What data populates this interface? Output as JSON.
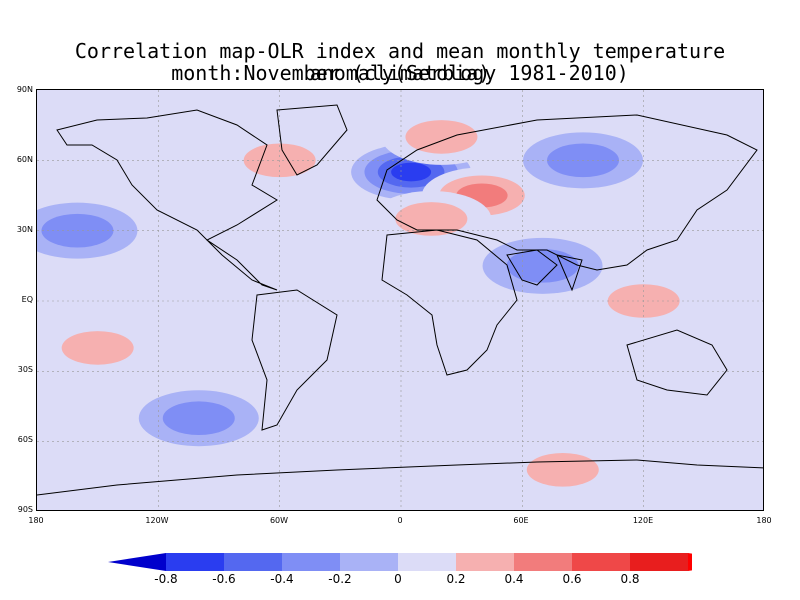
{
  "title_line1": "Correlation map-OLR index and mean monthly temperature anomaly(Serbia)",
  "title_line2": "month:November (climatology 1981-2010)",
  "y_axis_labels": [
    "90N",
    "60N",
    "30N",
    "EQ",
    "30S",
    "60S",
    "90S"
  ],
  "x_axis_labels": [
    "180",
    "120W",
    "60W",
    "0",
    "60E",
    "120E",
    "180"
  ],
  "colorbar": {
    "labels": [
      "-0.8",
      "-0.6",
      "-0.4",
      "-0.2",
      "0",
      "0.2",
      "0.4",
      "0.6",
      "0.8"
    ],
    "colors": [
      "#0000cc",
      "#2a3df0",
      "#5468f0",
      "#7f8ef5",
      "#a9b2f6",
      "#dcdcf7",
      "#f6b0b0",
      "#f27c7c",
      "#ef4848",
      "#e81e1e",
      "#ff0000"
    ]
  },
  "chart_data": {
    "type": "heatmap",
    "title": "Correlation map-OLR index and mean monthly temperature anomaly(Serbia)",
    "subtitle": "month:November (climatology 1981-2010)",
    "xlim": [
      -180,
      180
    ],
    "ylim": [
      -90,
      90
    ],
    "x_ticks": [
      "180",
      "120W",
      "60W",
      "0",
      "60E",
      "120E",
      "180"
    ],
    "y_ticks": [
      "90N",
      "60N",
      "30N",
      "EQ",
      "30S",
      "60S",
      "90S"
    ],
    "color_levels": [
      -0.8,
      -0.6,
      -0.4,
      -0.2,
      0,
      0.2,
      0.4,
      0.6,
      0.8
    ],
    "features": [
      {
        "region": "Western Europe / North Sea",
        "lon": 5,
        "lat": 55,
        "value": -0.8
      },
      {
        "region": "Black Sea / Turkey / Caspian",
        "lon": 40,
        "lat": 45,
        "value": 0.6
      },
      {
        "region": "Mediterranean / North Africa",
        "lon": 15,
        "lat": 35,
        "value": 0.4
      },
      {
        "region": "Greenland Sea / Scandinavia",
        "lon": 20,
        "lat": 70,
        "value": 0.4
      },
      {
        "region": "Labrador / Canada",
        "lon": -60,
        "lat": 60,
        "value": 0.4
      },
      {
        "region": "Indonesia / Maritime Continent",
        "lon": 120,
        "lat": 0,
        "value": 0.4
      },
      {
        "region": "North Pacific",
        "lon": -160,
        "lat": 30,
        "value": -0.4
      },
      {
        "region": "Southern Ocean",
        "lon": -100,
        "lat": -50,
        "value": -0.4
      },
      {
        "region": "Antarctic coast",
        "lon": 80,
        "lat": -72,
        "value": 0.4
      },
      {
        "region": "Siberia",
        "lon": 90,
        "lat": 60,
        "value": -0.4
      },
      {
        "region": "South Pacific",
        "lon": -150,
        "lat": -20,
        "value": 0.4
      },
      {
        "region": "Arabian Sea / India",
        "lon": 70,
        "lat": 15,
        "value": -0.4
      }
    ]
  }
}
